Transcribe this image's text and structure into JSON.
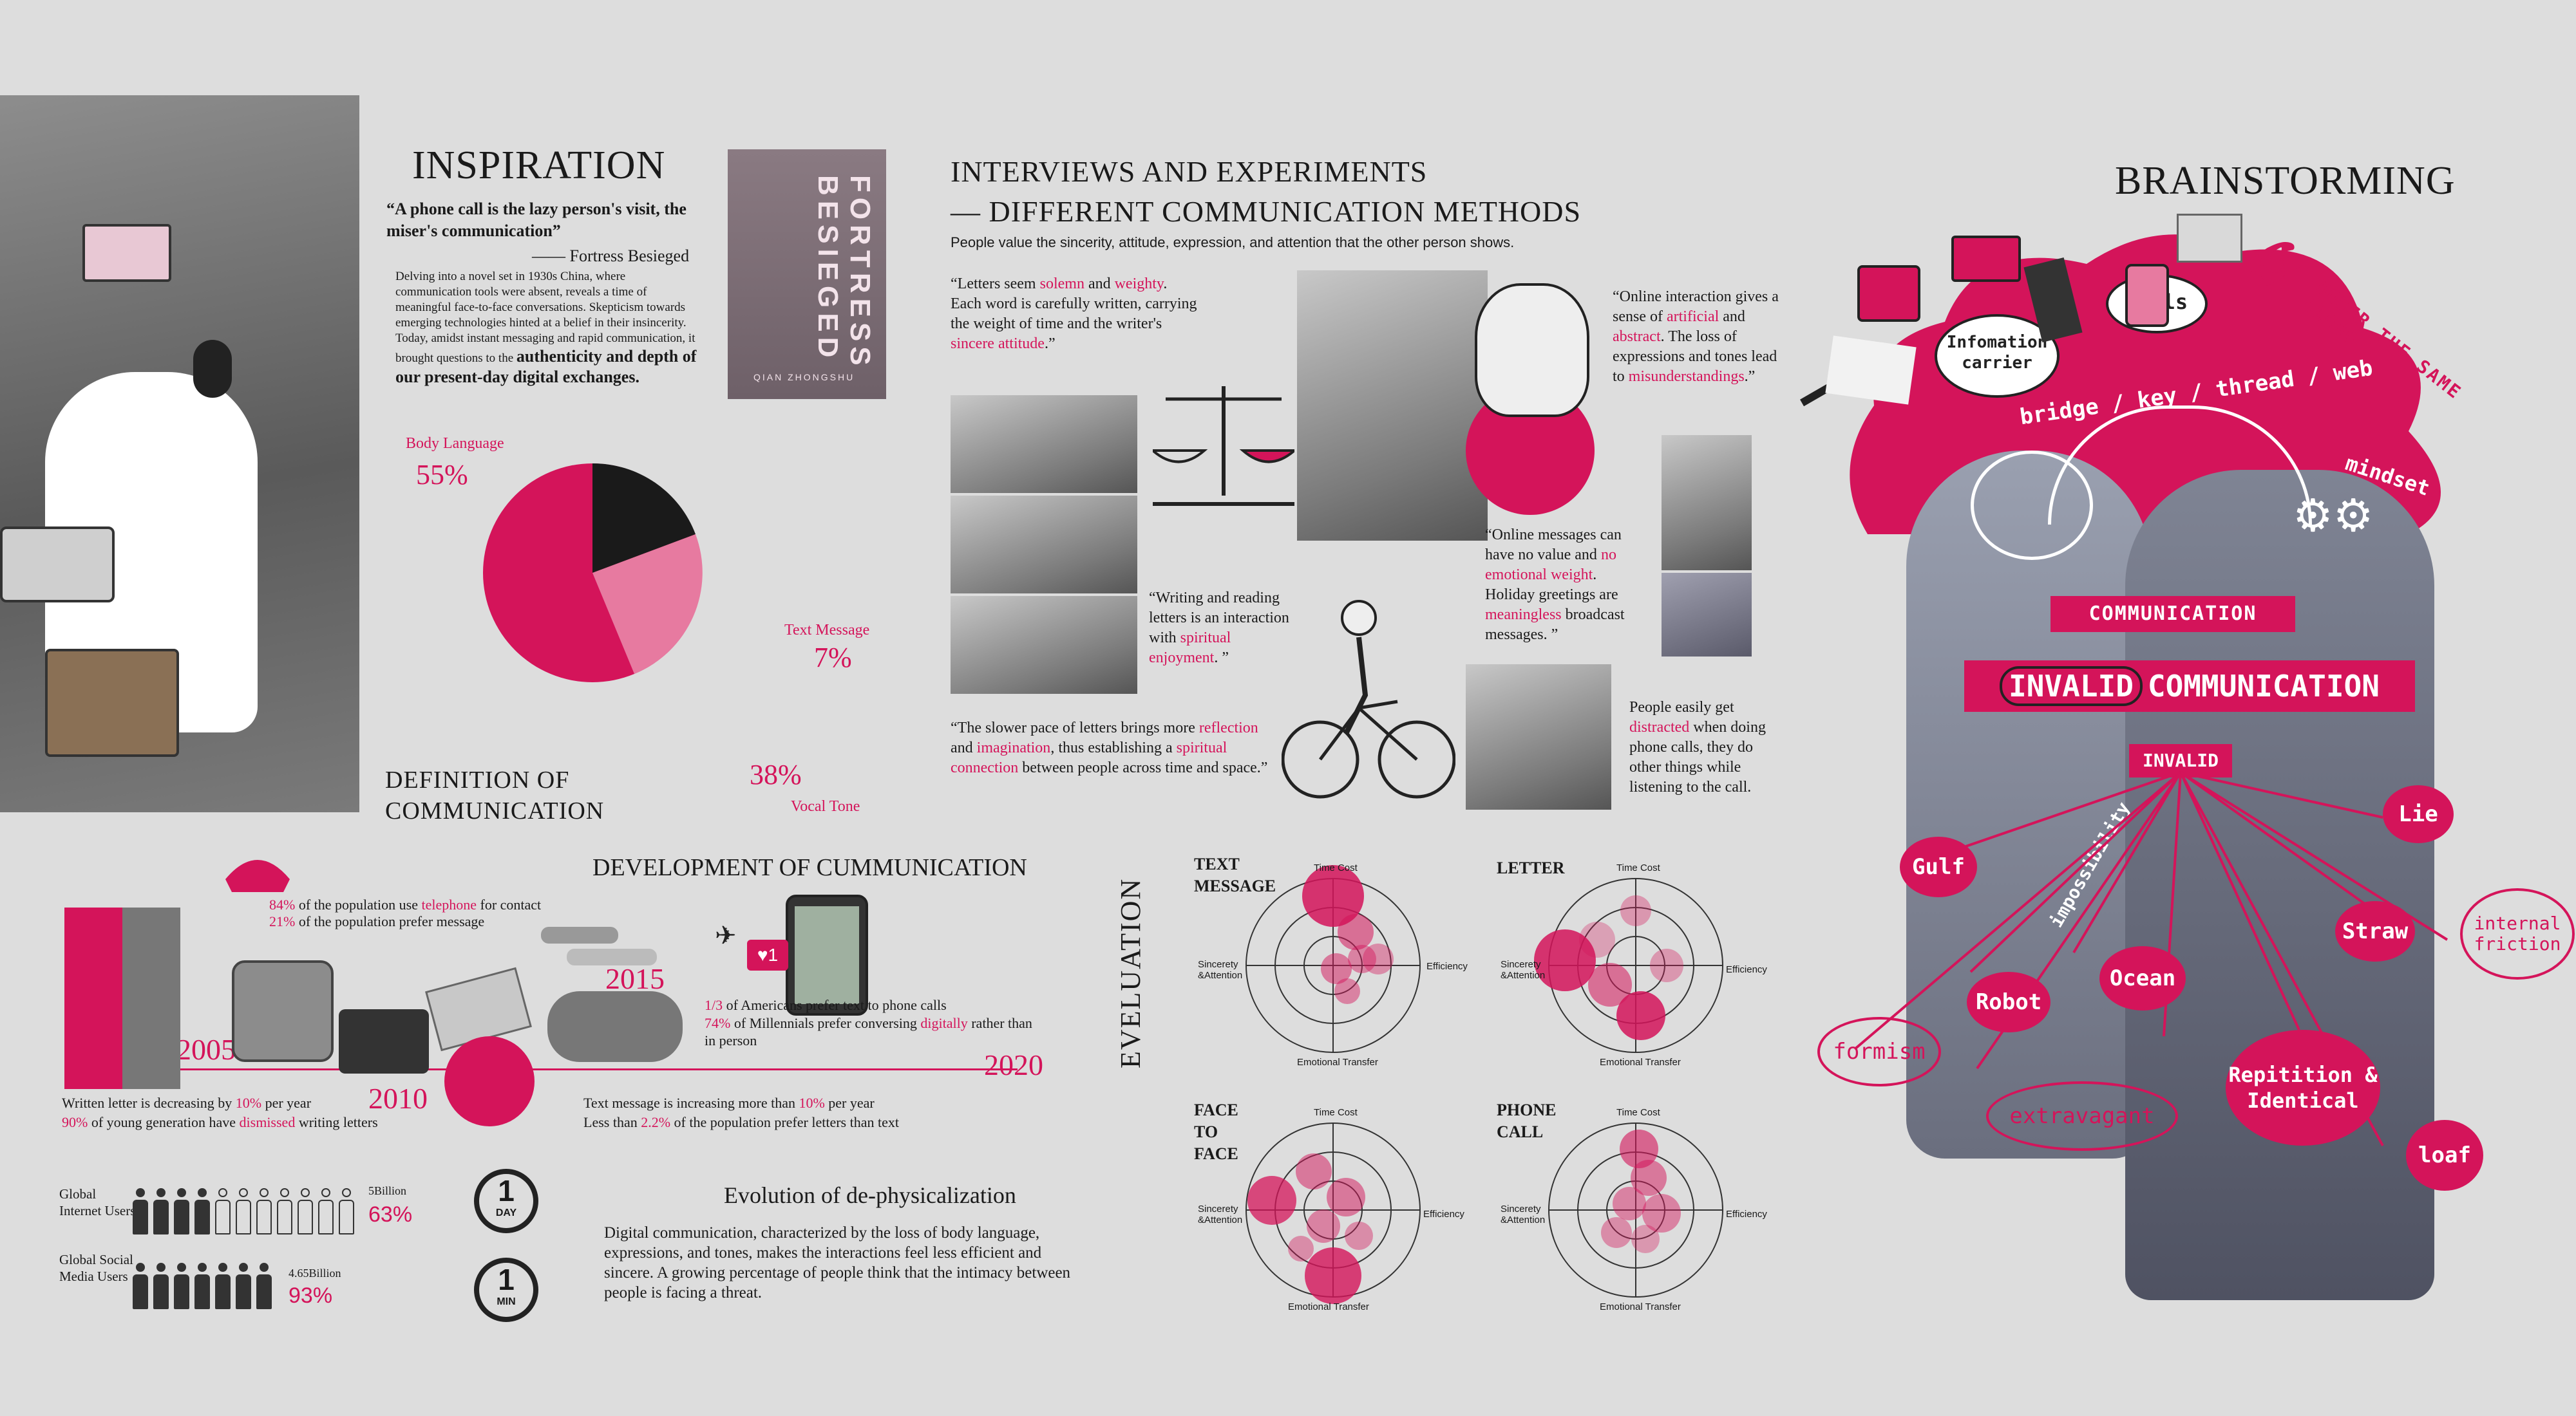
{
  "inspiration": {
    "title": "INSPIRATION",
    "quote": "“A phone call is the lazy person's visit, the miser's communication”",
    "quote_source": "—— Fortress Besieged",
    "paragraph": "Delving into a novel set in 1930s China, where communication tools were absent, reveals a time of meaningful face-to-face conversations. Skepticism towards emerging technologies hinted at a belief in their insincerity. Today, amidst instant messaging and rapid communication, it brought questions to the",
    "paragraph_bold": "authenticity and depth of our present-day digital exchanges.",
    "book_title": "FORTRESS BESIEGED",
    "book_author": "QIAN ZHONGSHU"
  },
  "definition": {
    "title": "DEFINITION OF COMMUNICATION",
    "body_language_label": "Body Language",
    "body_language_value": "55%",
    "text_message_label": "Text Message",
    "text_message_value": "7%",
    "vocal_tone_label": "Vocal Tone",
    "vocal_tone_value": "38%"
  },
  "interviews": {
    "title_line1": "INTERVIEWS AND EXPERIMENTS",
    "title_line2": "— DIFFERENT COMMUNICATION METHODS",
    "subtitle": "People value the sincerity, attitude, expression, and attention that the other person shows.",
    "q1": {
      "a": "“Letters seem ",
      "b": "solemn",
      "c": " and ",
      "d": "weighty",
      "e": ". Each word is carefully written, carrying the weight of time and the writer's ",
      "f": "sincere attitude",
      "g": ".”"
    },
    "q2": {
      "a": "“Online interaction gives a sense of ",
      "b": "artificial",
      "c": " and ",
      "d": "abstract",
      "e": ". The loss of expressions and tones lead to ",
      "f": "misunderstandings",
      "g": ".”"
    },
    "q3": {
      "a": "“Online messages can have no value and ",
      "b": "no emotional weight",
      "c": ". Holiday greetings are ",
      "d": "meaningless",
      "e": " broadcast messages. ”"
    },
    "q4": {
      "a": "“Writing and reading letters is an interaction with ",
      "b": "spiritual enjoyment",
      "c": ". ”"
    },
    "q5": {
      "a": "“The slower pace of letters brings more ",
      "b": "reflection",
      "c": " and ",
      "d": "imagination",
      "e": ", thus establishing a ",
      "f": "spiritual connection",
      "g": " between people across time and space.”"
    },
    "q6": {
      "a": "People easily get ",
      "b": "distracted",
      "c": " when doing phone calls, they do other things while listening to the call."
    }
  },
  "development": {
    "title": "DEVELOPMENT OF CUMMUNICATION",
    "years": [
      "2005",
      "2010",
      "2015",
      "2020"
    ],
    "phone_stat1_pct": "84%",
    "phone_stat1_a": " of the population use ",
    "phone_stat1_b": "telephone",
    "phone_stat1_c": " for contact",
    "phone_stat2_pct": "21%",
    "phone_stat2_text": " of the population prefer message",
    "letter_stat1_a": "Written letter is decreasing by ",
    "letter_stat1_b": "10%",
    "letter_stat1_c": " per year",
    "letter_stat2_a": "90%",
    "letter_stat2_b": " of young generation have ",
    "letter_stat2_c": "dismissed",
    "letter_stat2_d": " writing letters",
    "text_stat1_a": "Text message is increasing more than ",
    "text_stat1_b": "10%",
    "text_stat1_c": " per year",
    "text_stat2_a": "Less than ",
    "text_stat2_b": "2.2%",
    "text_stat2_c": " of the population prefer letters than text",
    "digital_stat1_a": "1/3",
    "digital_stat1_b": " of Americans prefer text to phone calls",
    "digital_stat2_a": "74%",
    "digital_stat2_b": " of Millennials prefer conversing ",
    "digital_stat2_c": "digitally",
    "digital_stat2_d": " rather than in person",
    "notification_count": "1"
  },
  "users": {
    "internet_label": "Global Internet Users",
    "internet_total": "5Billion",
    "internet_pct": "63%",
    "internet_fraction": 0.63,
    "social_label": "Global Social Media Users",
    "social_total": "4.65Billion",
    "social_pct": "93%",
    "social_fraction": 0.93,
    "day_icon_num": "1",
    "day_icon_unit": "DAY",
    "min_icon_num": "1",
    "min_icon_unit": "MIN"
  },
  "dephysical": {
    "title": "Evolution of de-physicalization",
    "body": "Digital communication, characterized by the loss of body language, expressions, and tones, makes the interactions feel less efficient and sincere. A growing percentage of people think that the intimacy between people is facing a threat."
  },
  "evaluation": {
    "title": "EVELUATION",
    "axes": {
      "top": "Time Cost",
      "right": "Efficiency",
      "bottom": "Emotional Transfer",
      "left": "Sincerety &Attention"
    },
    "charts": [
      {
        "label": "TEXT MESSAGE"
      },
      {
        "label": "LETTER"
      },
      {
        "label": "FACE TO FACE"
      },
      {
        "label": "PHONE CALL"
      }
    ]
  },
  "brainstorm": {
    "title": "BRAINSTORMING",
    "carrier": "Infomation carrier",
    "tools": "Tools",
    "cloud": "UNDER THE SAME CLOUD",
    "bridge": "bridge / key / thread / web",
    "mindset": "mindset",
    "communication": "COMMUNICATION",
    "invalid_a": "INVALID",
    "invalid_b": "COMMUNICATION",
    "invalid_small": "INVALID",
    "impossibility": "impossibility",
    "tags_fill": [
      "Gulf",
      "Lie",
      "Straw",
      "Ocean",
      "Robot",
      "Repitition & Identical",
      "loaf"
    ],
    "tags_oval": [
      "internal friction",
      "formism",
      "extravagant"
    ]
  },
  "colors": {
    "accent": "#d4145a",
    "background": "#dddddd"
  }
}
